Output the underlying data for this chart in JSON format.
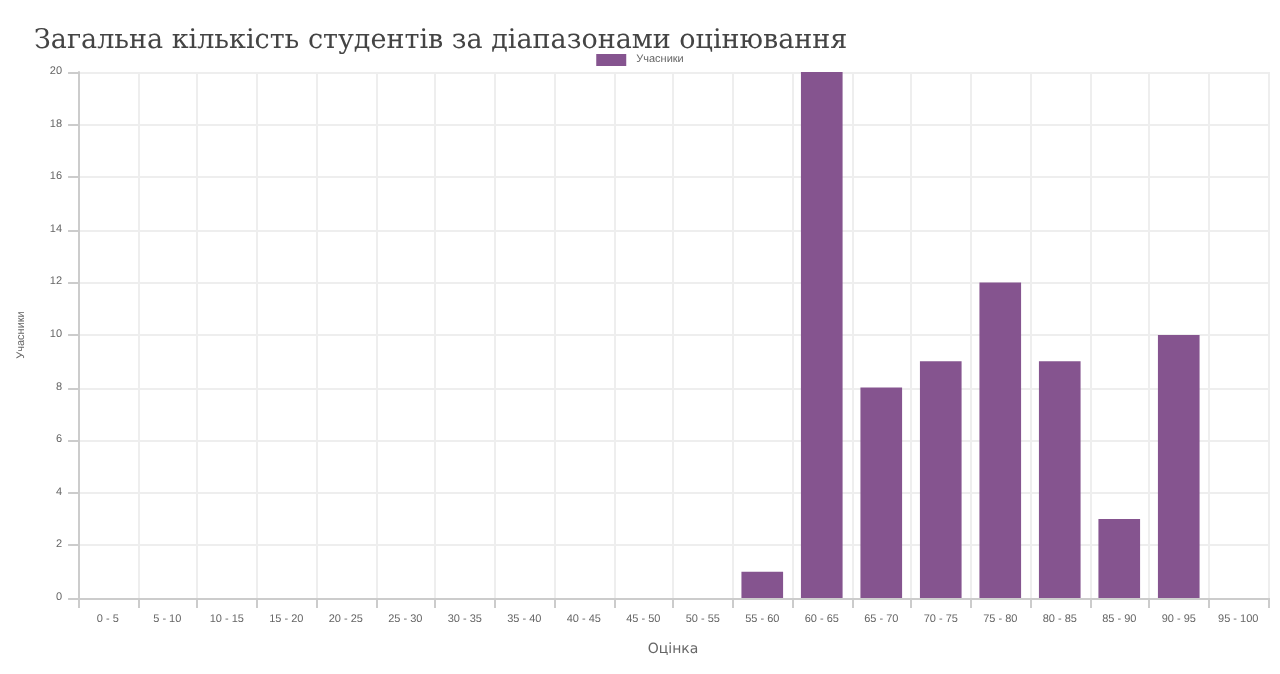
{
  "chart_data": {
    "type": "bar",
    "title": "Загальна кількість студентів за діапазонами оцінювання",
    "xlabel": "Оцінка",
    "ylabel": "Учасники",
    "categories": [
      "0 - 5",
      "5 - 10",
      "10 - 15",
      "15 - 20",
      "20 - 25",
      "25 - 30",
      "30 - 35",
      "35 - 40",
      "40 - 45",
      "45 - 50",
      "50 - 55",
      "55 - 60",
      "60 - 65",
      "65 - 70",
      "70 - 75",
      "75 - 80",
      "80 - 85",
      "85 - 90",
      "90 - 95",
      "95 - 100"
    ],
    "series": [
      {
        "name": "Учасники",
        "color": "#85548f",
        "values": [
          0,
          0,
          0,
          0,
          0,
          0,
          0,
          0,
          0,
          0,
          0,
          1,
          20,
          8,
          9,
          12,
          9,
          3,
          10,
          0
        ]
      }
    ],
    "ylim": [
      0,
      20
    ],
    "yticks": [
      0,
      2,
      4,
      6,
      8,
      10,
      12,
      14,
      16,
      18,
      20
    ],
    "grid": true,
    "legend": "top"
  }
}
